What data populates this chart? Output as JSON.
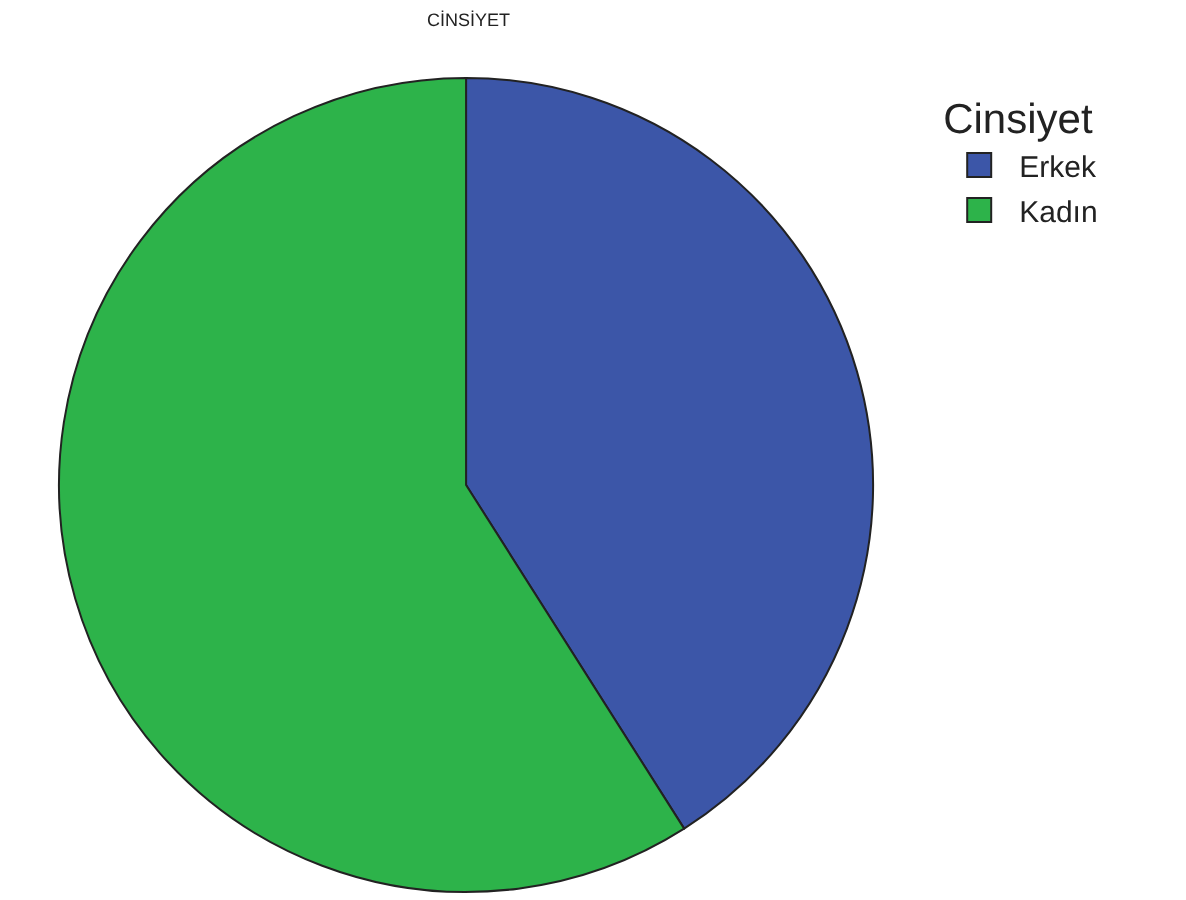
{
  "chart_data": {
    "type": "pie",
    "title": "CİNSİYET",
    "legend_title": "Cinsiyet",
    "categories": [
      "Erkek",
      "Kadın"
    ],
    "values": [
      41,
      59
    ],
    "colors": [
      "#3c56a8",
      "#2db34a"
    ],
    "legend": "top right"
  }
}
